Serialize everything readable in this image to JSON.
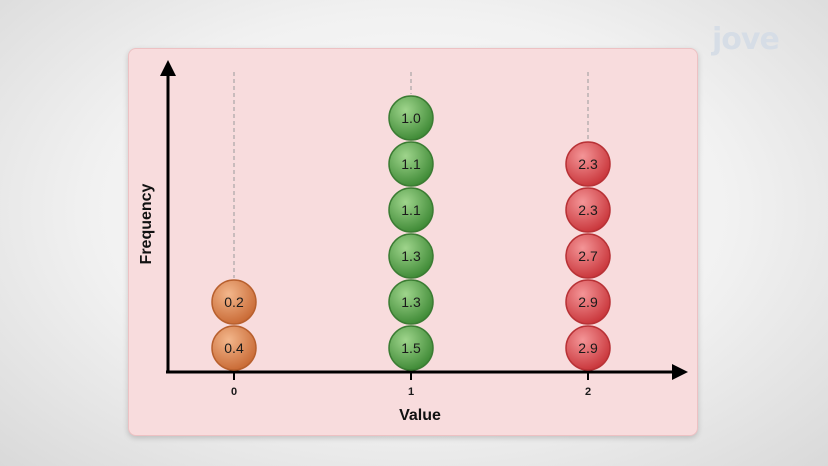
{
  "brand": {
    "logo_text": "jove"
  },
  "chart_data": {
    "type": "dot-stack",
    "xlabel": "Value",
    "ylabel": "Frequency",
    "categories": [
      "0",
      "1",
      "2"
    ],
    "columns": [
      {
        "category": "0",
        "values": [
          "0.4",
          "0.2"
        ],
        "color": "#d9844f"
      },
      {
        "category": "1",
        "values": [
          "1.5",
          "1.3",
          "1.3",
          "1.1",
          "1.1",
          "1.0"
        ],
        "color": "#5ea94f"
      },
      {
        "category": "2",
        "values": [
          "2.9",
          "2.9",
          "2.7",
          "2.3",
          "2.3"
        ],
        "color": "#dd4c50"
      }
    ]
  }
}
